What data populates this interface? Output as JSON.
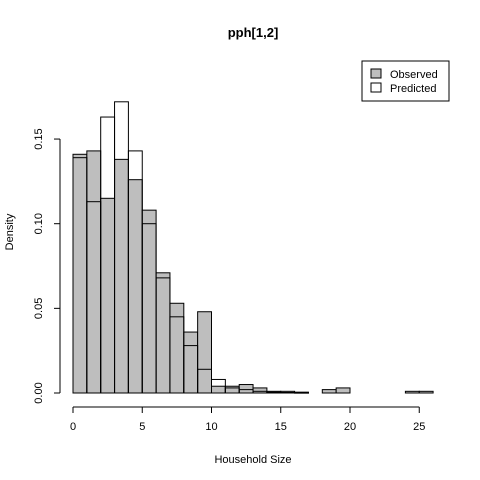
{
  "chart_data": {
    "type": "bar",
    "title": "pph[1,2]",
    "xlabel": "Household Size",
    "ylabel": "Density",
    "xlim": [
      0,
      26
    ],
    "ylim": [
      0,
      0.175
    ],
    "x_ticks": [
      0,
      5,
      10,
      15,
      20,
      25
    ],
    "x_tick_labels": [
      "0",
      "5",
      "10",
      "15",
      "20",
      "25"
    ],
    "y_ticks": [
      0,
      0.05,
      0.1,
      0.15
    ],
    "y_tick_labels": [
      "0.00",
      "0.05",
      "0.10",
      "0.15"
    ],
    "bin_width": 1,
    "bin_starts": [
      0,
      1,
      2,
      3,
      4,
      5,
      6,
      7,
      8,
      9,
      10,
      11,
      12,
      13,
      14,
      15,
      16,
      17,
      18,
      19,
      20,
      21,
      22,
      23,
      24,
      25
    ],
    "legend_position": "top-right",
    "series": [
      {
        "name": "Observed",
        "fill": "#bebebe",
        "values": [
          0.141,
          0.143,
          0.115,
          0.138,
          0.126,
          0.108,
          0.071,
          0.053,
          0.036,
          0.048,
          0.004,
          0.004,
          0.005,
          0.003,
          0.001,
          0.001,
          0.0005,
          0.0,
          0.002,
          0.003,
          0.0,
          0.0,
          0.0,
          0.0,
          0.001,
          0.001
        ]
      },
      {
        "name": "Predicted",
        "fill": "#ffffff",
        "values": [
          0.139,
          0.113,
          0.163,
          0.172,
          0.143,
          0.1,
          0.068,
          0.045,
          0.028,
          0.014,
          0.008,
          0.003,
          0.002,
          0.001,
          0.0005,
          0.0003,
          0.0002,
          0.0,
          0.0,
          0.0,
          0.0,
          0.0,
          0.0,
          0.0,
          0.0,
          0.0
        ]
      }
    ]
  }
}
